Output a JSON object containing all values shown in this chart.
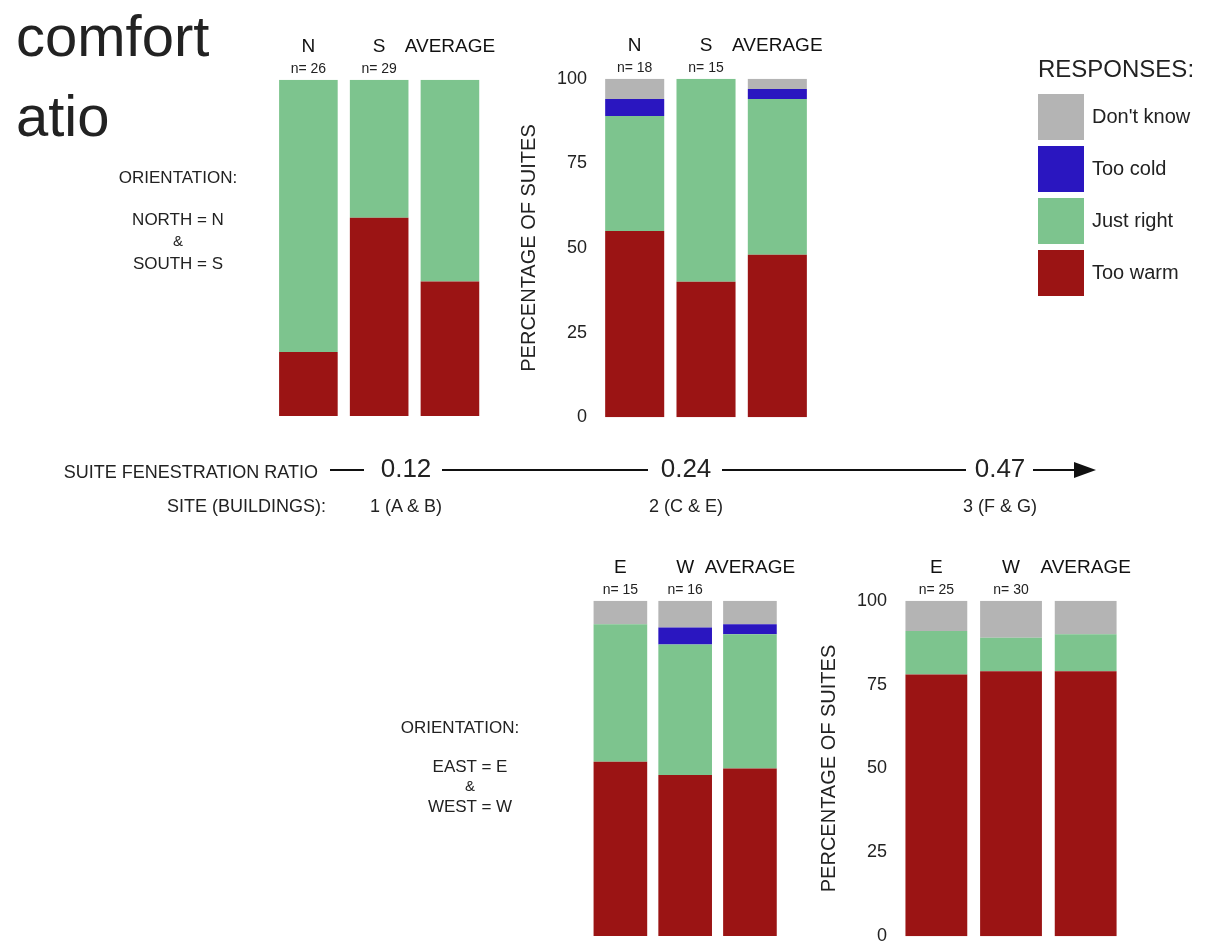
{
  "chart_data": [
    {
      "type": "bar",
      "stacked": true,
      "categories": [
        "N",
        "S",
        "AVERAGE"
      ],
      "ylim": [
        0,
        100
      ],
      "tick_labels": "x",
      "grid": false,
      "series": [
        {
          "color": "#9b1414",
          "values": [
            19,
            59,
            40
          ]
        },
        {
          "color": "#7dc48e",
          "values": [
            81,
            41,
            60
          ]
        }
      ],
      "annotations": [
        "comfort",
        "atio",
        "ORIENTATION:",
        "NORTH = N",
        "&",
        "SOUTH = S",
        "n= 26",
        "n= 29"
      ]
    },
    {
      "type": "bar",
      "stacked": true,
      "categories": [
        "N",
        "S",
        "AVERAGE"
      ],
      "ylim": [
        0,
        100
      ],
      "yticks": [
        0,
        25,
        50,
        75,
        100
      ],
      "ylabel": "PERCENTAGE OF SUITES",
      "grid": false,
      "legend": "right",
      "legend_title": "RESPONSES:",
      "series": [
        {
          "name": "Too warm",
          "color": "#9b1414",
          "values": [
            55,
            40,
            48
          ]
        },
        {
          "name": "Just right",
          "color": "#7dc48e",
          "values": [
            34,
            60,
            46
          ]
        },
        {
          "name": "Too cold",
          "color": "#2a16c0",
          "values": [
            5,
            0,
            3
          ]
        },
        {
          "name": "Don't know",
          "color": "#b4b4b4",
          "values": [
            6,
            0,
            3
          ]
        }
      ],
      "annotations": [
        {
          "text": "n= 18",
          "x": "N",
          "y": 100
        },
        {
          "text": "n= 15",
          "x": "S",
          "y": 100
        }
      ]
    },
    {
      "type": "other",
      "annotations": [
        "SUITE FENESTRATION RATIO",
        "0.12",
        "0.24",
        "0.47",
        "SITE (BUILDINGS):",
        "1 (A & B)",
        "2 (C & E)",
        "3 (F & G)"
      ]
    },
    {
      "type": "bar",
      "stacked": true,
      "categories": [
        "E",
        "W",
        "AVERAGE"
      ],
      "ylim": [
        0,
        100
      ],
      "tick_labels": "x",
      "grid": false,
      "series": [
        {
          "color": "#9b1414",
          "values": [
            52,
            48,
            50
          ]
        },
        {
          "color": "#7dc48e",
          "values": [
            41,
            39,
            40
          ]
        },
        {
          "color": "#2a16c0",
          "values": [
            0,
            5,
            3
          ]
        },
        {
          "color": "#b4b4b4",
          "values": [
            7,
            8,
            7
          ]
        }
      ],
      "annotations": [
        "ORIENTATION:",
        "EAST = E",
        "&",
        "WEST = W",
        "n= 15",
        "n= 16"
      ]
    },
    {
      "type": "bar",
      "stacked": true,
      "categories": [
        "E",
        "W",
        "AVERAGE"
      ],
      "ylim": [
        0,
        100
      ],
      "yticks": [
        0,
        25,
        50,
        75,
        100
      ],
      "ylabel": "PERCENTAGE OF SUITES",
      "grid": false,
      "series": [
        {
          "color": "#9b1414",
          "values": [
            78,
            79,
            79
          ]
        },
        {
          "color": "#7dc48e",
          "values": [
            13,
            10,
            11
          ]
        },
        {
          "color": "#b4b4b4",
          "values": [
            9,
            11,
            10
          ]
        }
      ],
      "annotations": [
        {
          "text": "n= 25",
          "x": "E",
          "y": 100
        },
        {
          "text": "n= 30",
          "x": "W",
          "y": 100
        }
      ]
    }
  ]
}
